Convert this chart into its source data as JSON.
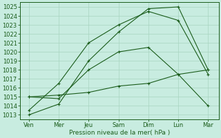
{
  "background_color": "#c8ece0",
  "grid_color": "#a8d4c0",
  "line_color": "#1a5c1a",
  "x_labels": [
    "Ven",
    "Mer",
    "Jeu",
    "Sam",
    "Dim",
    "Lun",
    "Mar"
  ],
  "x_positions": [
    0,
    1,
    2,
    3,
    4,
    5,
    6
  ],
  "xlabel": "Pression niveau de la mer( hPa )",
  "ylim": [
    1012.5,
    1025.5
  ],
  "yticks": [
    1013,
    1014,
    1015,
    1016,
    1017,
    1018,
    1019,
    1020,
    1021,
    1022,
    1023,
    1024,
    1025
  ],
  "lines": [
    [
      1013.0,
      1014.2,
      1019.0,
      1022.2,
      1024.8,
      1025.0,
      1018.0
    ],
    [
      1013.5,
      1016.5,
      1021.0,
      1023.0,
      1024.5,
      1023.5,
      1017.5
    ],
    [
      1015.0,
      1015.2,
      1015.5,
      1016.2,
      1016.5,
      1017.5,
      1018.0
    ],
    [
      1015.0,
      1014.8,
      1018.0,
      1020.0,
      1020.5,
      1017.5,
      1014.0
    ]
  ],
  "line_styles": [
    "-",
    "-",
    "-",
    "-"
  ],
  "marker": "+"
}
